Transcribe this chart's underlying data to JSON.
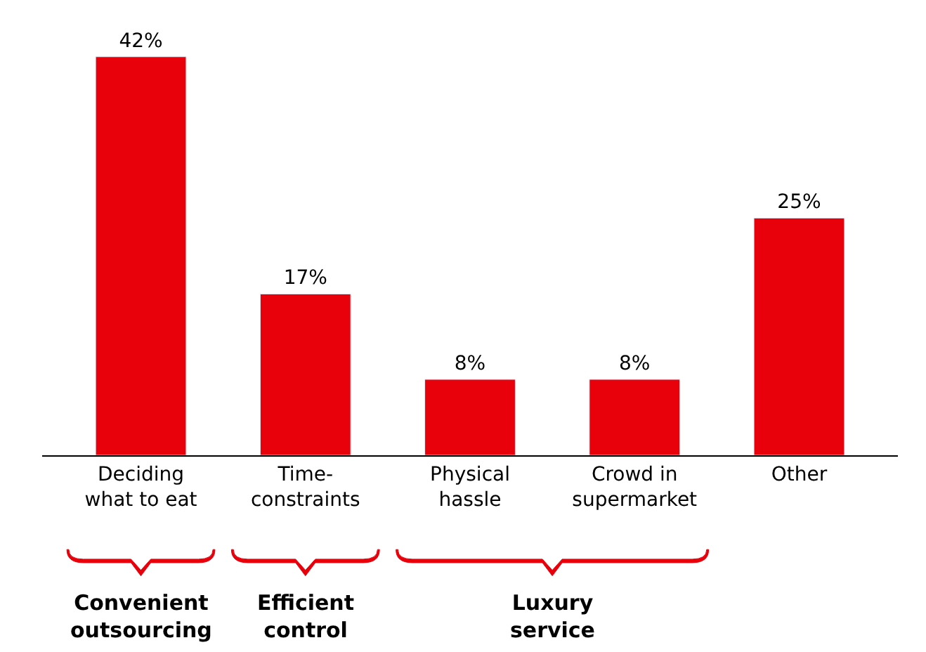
{
  "chart_data": {
    "type": "bar",
    "categories": [
      "Deciding what to eat",
      "Time-constraints",
      "Physical hassle",
      "Crowd in supermarket",
      "Other"
    ],
    "values": [
      42,
      17,
      8,
      8,
      25
    ],
    "value_labels": [
      "42%",
      "17%",
      "8%",
      "8%",
      "25%"
    ],
    "color": "#e8000b",
    "legend": false,
    "annotations": [
      "Convenient outsourcing",
      "Efficient control",
      "Luxury service"
    ]
  }
}
